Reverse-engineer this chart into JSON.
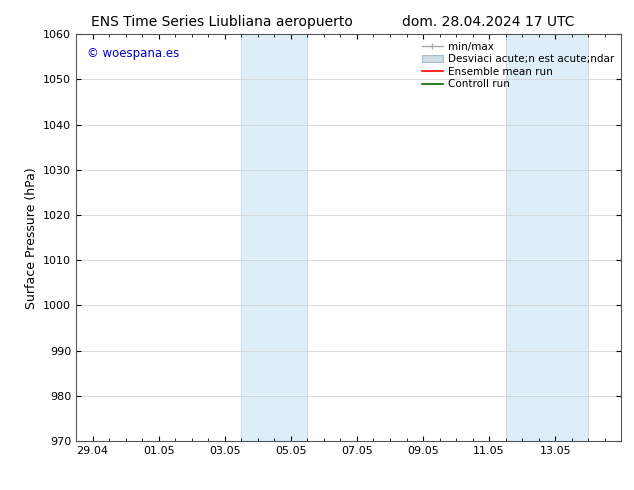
{
  "title_left": "ENS Time Series Liubliana aeropuerto",
  "title_right": "dom. 28.04.2024 17 UTC",
  "ylabel": "Surface Pressure (hPa)",
  "ylim": [
    970,
    1060
  ],
  "yticks": [
    970,
    980,
    990,
    1000,
    1010,
    1020,
    1030,
    1040,
    1050,
    1060
  ],
  "xtick_labels": [
    "29.04",
    "01.05",
    "03.05",
    "05.05",
    "07.05",
    "09.05",
    "11.05",
    "13.05"
  ],
  "xtick_positions": [
    0,
    2,
    4,
    6,
    8,
    10,
    12,
    14
  ],
  "watermark": "© woespana.es",
  "watermark_color": "#0000bb",
  "shaded_bands": [
    {
      "x_start": 4.5,
      "x_end": 6.5
    },
    {
      "x_start": 12.5,
      "x_end": 15.0
    }
  ],
  "shaded_color": "#ddeef8",
  "shaded_edge_color": "#bbccdd",
  "background_color": "#ffffff",
  "legend_label_1": "min/max",
  "legend_label_2": "Desviaci acute;n est acute;ndar",
  "legend_label_3": "Ensemble mean run",
  "legend_label_4": "Controll run",
  "legend_color_1": "#aaaaaa",
  "legend_color_2": "#ccdde8",
  "legend_color_3": "#ff0000",
  "legend_color_4": "#006600",
  "xlim": [
    -0.5,
    15.5
  ],
  "grid_color": "#cccccc",
  "title_fontsize": 10,
  "label_fontsize": 9,
  "tick_fontsize": 8,
  "legend_fontsize": 7.5
}
